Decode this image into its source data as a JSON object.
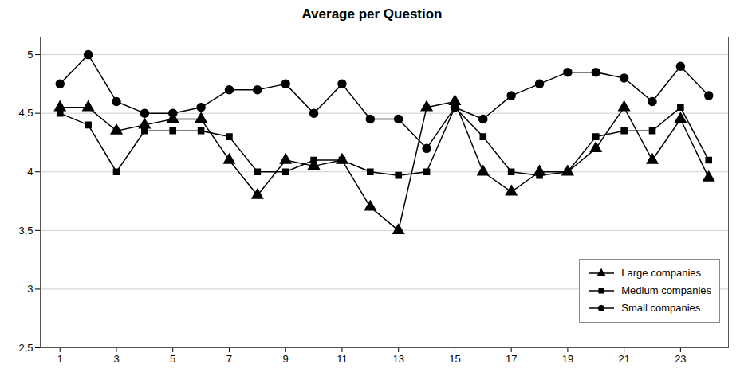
{
  "chart_data": {
    "type": "line",
    "title": "Average per Question",
    "x": [
      1,
      2,
      3,
      4,
      5,
      6,
      7,
      8,
      9,
      10,
      11,
      12,
      13,
      14,
      15,
      16,
      17,
      18,
      19,
      20,
      21,
      22,
      23,
      24
    ],
    "series": [
      {
        "name": "Large companies",
        "color": "#000000",
        "marker": "triangle",
        "values": [
          4.55,
          4.55,
          4.35,
          4.4,
          4.45,
          4.45,
          4.1,
          3.8,
          4.1,
          4.05,
          4.1,
          3.7,
          3.5,
          4.55,
          4.6,
          4.0,
          3.83,
          4.0,
          4.0,
          4.2,
          4.55,
          4.1,
          4.45,
          3.95
        ]
      },
      {
        "name": "Medium companies",
        "color": "#000000",
        "marker": "square",
        "values": [
          4.5,
          4.4,
          4.0,
          4.35,
          4.35,
          4.35,
          4.3,
          4.0,
          4.0,
          4.1,
          4.1,
          4.0,
          3.97,
          4.0,
          4.55,
          4.3,
          4.0,
          3.97,
          4.0,
          4.3,
          4.35,
          4.35,
          4.55,
          4.1
        ]
      },
      {
        "name": "Small companies",
        "color": "#000000",
        "marker": "circle",
        "values": [
          4.75,
          5.0,
          4.6,
          4.5,
          4.5,
          4.55,
          4.7,
          4.7,
          4.75,
          4.5,
          4.75,
          4.45,
          4.45,
          4.2,
          4.55,
          4.45,
          4.65,
          4.75,
          4.85,
          4.85,
          4.8,
          4.6,
          4.9,
          4.65
        ]
      }
    ],
    "xlim": [
      0.3,
      24.7
    ],
    "xticks": [
      1,
      3,
      5,
      7,
      9,
      11,
      13,
      15,
      17,
      19,
      21,
      23
    ],
    "ylim": [
      2.5,
      5.15
    ],
    "yticks": [
      {
        "value": 2.5,
        "label": "2,5"
      },
      3,
      {
        "value": 3.5,
        "label": "3,5"
      },
      4,
      {
        "value": 4.5,
        "label": "4,5"
      },
      5
    ],
    "grid": "y",
    "legend": "lower right"
  }
}
